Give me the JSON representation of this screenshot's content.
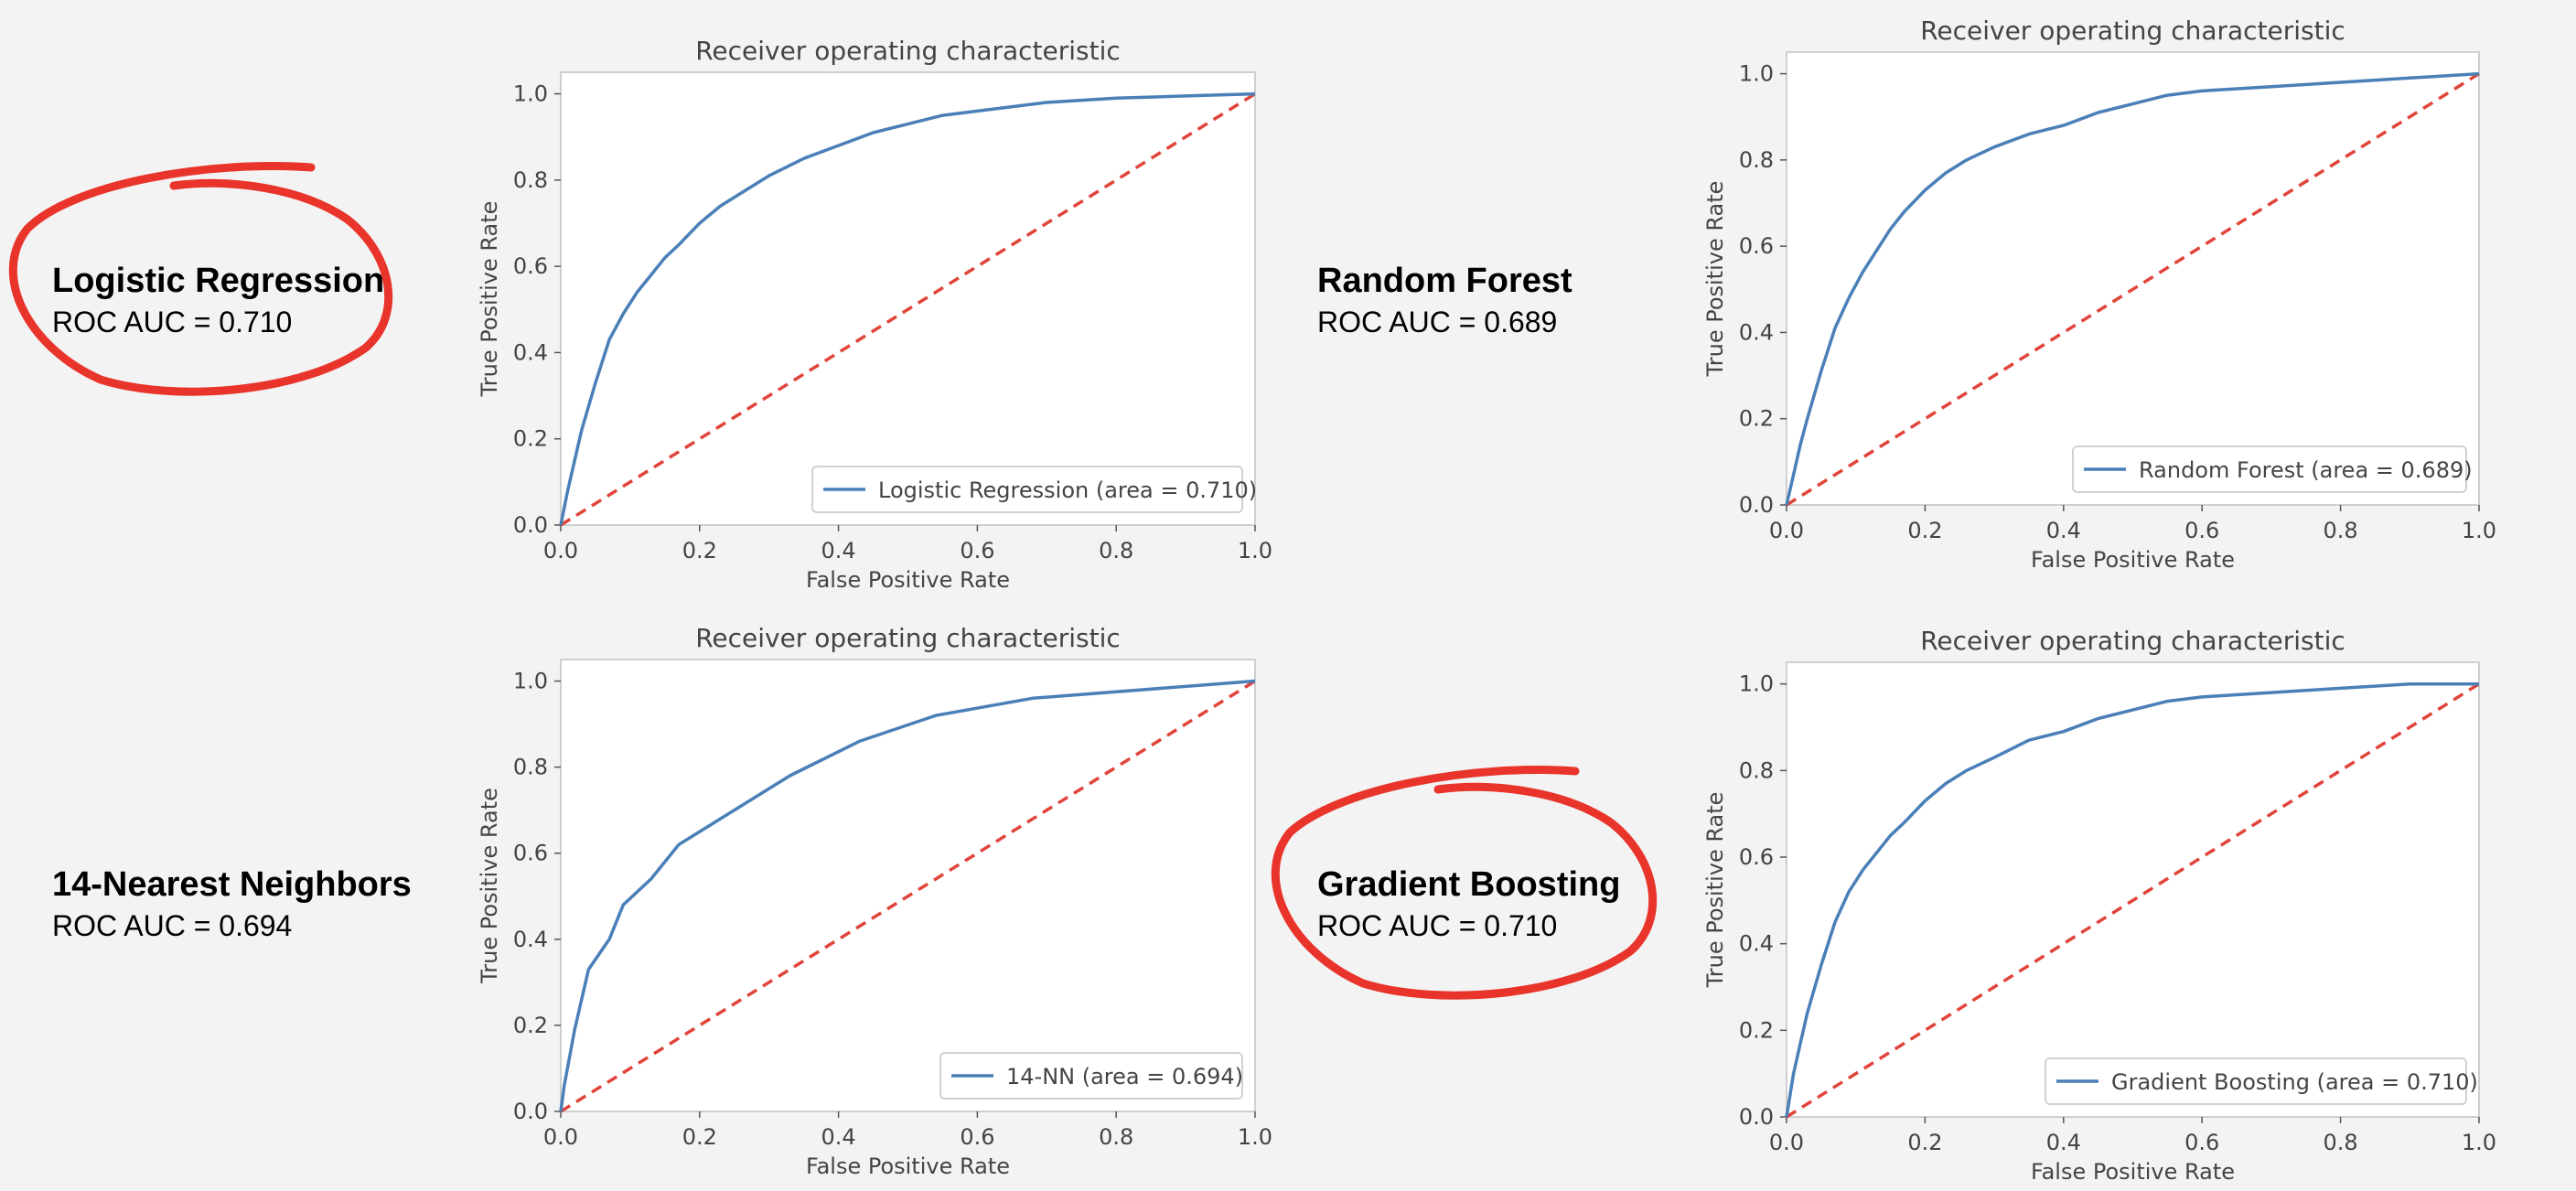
{
  "labels": [
    {
      "name": "Logistic Regression",
      "auc": "ROC AUC = 0.710"
    },
    {
      "name": "Random Forest",
      "auc": "ROC AUC = 0.689"
    },
    {
      "name": "14-Nearest Neighbors",
      "auc": "ROC AUC = 0.694"
    },
    {
      "name": "Gradient Boosting",
      "auc": "ROC AUC = 0.710"
    }
  ],
  "colors": {
    "roc": "#4a7fb8",
    "diagonal": "#e0443a",
    "annotation": "#e8342a",
    "frame": "#cfcfcf",
    "text": "#444444"
  },
  "chart_data": [
    {
      "type": "line",
      "title": "Receiver operating characteristic",
      "xlabel": "False Positive Rate",
      "ylabel": "True Positive Rate",
      "xlim": [
        0.0,
        1.0
      ],
      "ylim": [
        0.0,
        1.05
      ],
      "xticks": [
        "0.0",
        "0.2",
        "0.4",
        "0.6",
        "0.8",
        "1.0"
      ],
      "yticks": [
        "0.0",
        "0.2",
        "0.4",
        "0.6",
        "0.8",
        "1.0"
      ],
      "grid": false,
      "legend_position": "lower-right",
      "series": [
        {
          "name": "Logistic Regression (area = 0.710)",
          "x": [
            0,
            0.01,
            0.02,
            0.03,
            0.05,
            0.07,
            0.09,
            0.11,
            0.13,
            0.15,
            0.17,
            0.2,
            0.23,
            0.26,
            0.3,
            0.35,
            0.4,
            0.45,
            0.5,
            0.55,
            0.6,
            0.7,
            0.8,
            0.9,
            1.0
          ],
          "y": [
            0,
            0.08,
            0.15,
            0.22,
            0.33,
            0.43,
            0.49,
            0.54,
            0.58,
            0.62,
            0.65,
            0.7,
            0.74,
            0.77,
            0.81,
            0.85,
            0.88,
            0.91,
            0.93,
            0.95,
            0.96,
            0.98,
            0.99,
            0.995,
            1.0
          ]
        }
      ],
      "diagonal": [
        [
          0,
          0
        ],
        [
          1,
          1
        ]
      ]
    },
    {
      "type": "line",
      "title": "Receiver operating characteristic",
      "xlabel": "False Positive Rate",
      "ylabel": "True Positive Rate",
      "xlim": [
        0.0,
        1.0
      ],
      "ylim": [
        0.0,
        1.05
      ],
      "xticks": [
        "0.0",
        "0.2",
        "0.4",
        "0.6",
        "0.8",
        "1.0"
      ],
      "yticks": [
        "0.0",
        "0.2",
        "0.4",
        "0.6",
        "0.8",
        "1.0"
      ],
      "grid": false,
      "legend_position": "lower-right",
      "series": [
        {
          "name": "Random Forest (area = 0.689)",
          "x": [
            0,
            0.01,
            0.02,
            0.03,
            0.05,
            0.07,
            0.09,
            0.11,
            0.13,
            0.15,
            0.17,
            0.2,
            0.23,
            0.26,
            0.3,
            0.35,
            0.4,
            0.45,
            0.5,
            0.55,
            0.6,
            0.7,
            0.8,
            0.9,
            1.0
          ],
          "y": [
            0,
            0.07,
            0.14,
            0.2,
            0.31,
            0.41,
            0.48,
            0.54,
            0.59,
            0.64,
            0.68,
            0.73,
            0.77,
            0.8,
            0.83,
            0.86,
            0.88,
            0.91,
            0.93,
            0.95,
            0.96,
            0.97,
            0.98,
            0.99,
            1.0
          ]
        }
      ],
      "diagonal": [
        [
          0,
          0
        ],
        [
          1,
          1
        ]
      ]
    },
    {
      "type": "line",
      "title": "Receiver operating characteristic",
      "xlabel": "False Positive Rate",
      "ylabel": "True Positive Rate",
      "xlim": [
        0.0,
        1.0
      ],
      "ylim": [
        0.0,
        1.05
      ],
      "xticks": [
        "0.0",
        "0.2",
        "0.4",
        "0.6",
        "0.8",
        "1.0"
      ],
      "yticks": [
        "0.0",
        "0.2",
        "0.4",
        "0.6",
        "0.8",
        "1.0"
      ],
      "grid": false,
      "legend_position": "lower-right",
      "series": [
        {
          "name": "14-NN (area = 0.694)",
          "x": [
            0,
            0.005,
            0.02,
            0.04,
            0.07,
            0.09,
            0.13,
            0.17,
            0.33,
            0.43,
            0.54,
            0.68,
            1.0
          ],
          "y": [
            0,
            0.06,
            0.19,
            0.33,
            0.4,
            0.48,
            0.54,
            0.62,
            0.78,
            0.86,
            0.92,
            0.96,
            1.0
          ]
        }
      ],
      "diagonal": [
        [
          0,
          0
        ],
        [
          1,
          1
        ]
      ]
    },
    {
      "type": "line",
      "title": "Receiver operating characteristic",
      "xlabel": "False Positive Rate",
      "ylabel": "True Positive Rate",
      "xlim": [
        0.0,
        1.0
      ],
      "ylim": [
        0.0,
        1.05
      ],
      "xticks": [
        "0.0",
        "0.2",
        "0.4",
        "0.6",
        "0.8",
        "1.0"
      ],
      "yticks": [
        "0.0",
        "0.2",
        "0.4",
        "0.6",
        "0.8",
        "1.0"
      ],
      "grid": false,
      "legend_position": "lower-right",
      "series": [
        {
          "name": "Gradient Boosting (area = 0.710)",
          "x": [
            0,
            0.01,
            0.02,
            0.03,
            0.05,
            0.07,
            0.09,
            0.11,
            0.13,
            0.15,
            0.17,
            0.2,
            0.23,
            0.26,
            0.3,
            0.35,
            0.4,
            0.45,
            0.5,
            0.55,
            0.6,
            0.7,
            0.8,
            0.9,
            1.0
          ],
          "y": [
            0,
            0.1,
            0.17,
            0.24,
            0.35,
            0.45,
            0.52,
            0.57,
            0.61,
            0.65,
            0.68,
            0.73,
            0.77,
            0.8,
            0.83,
            0.87,
            0.89,
            0.92,
            0.94,
            0.96,
            0.97,
            0.98,
            0.99,
            1.0,
            1.0
          ]
        }
      ],
      "diagonal": [
        [
          0,
          0
        ],
        [
          1,
          1
        ]
      ]
    }
  ]
}
